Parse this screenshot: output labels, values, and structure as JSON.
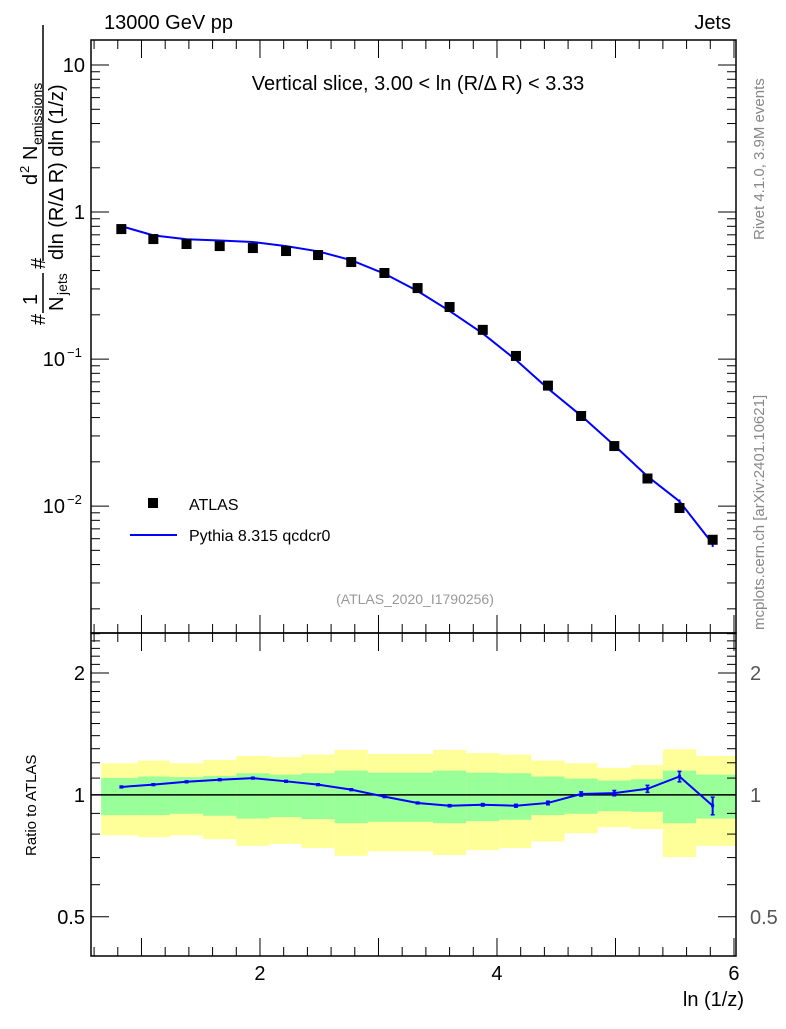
{
  "header": {
    "left": "13000 GeV pp",
    "right": "Jets"
  },
  "side_labels": {
    "rivet": "Rivet 4.1.0,  3.9M events",
    "mcplots": "mcplots.cern.ch [arXiv:2401.10621]"
  },
  "colors": {
    "atlas": "#000000",
    "pythia": "#0000ff",
    "band_inner": "#99ff99",
    "band_outer": "#ffff99"
  },
  "chart_data": [
    {
      "type": "scatter",
      "title": "Vertical slice, 3.00 < ln (R/Δ R) < 3.33",
      "ylabel_parts": {
        "hash1": "#",
        "one": "1",
        "njets": "N",
        "njets_sub": "jets",
        "hash2": "#",
        "num": "d",
        "num_sup": "2",
        "num_n": "N",
        "num_sub": "emissions",
        "den": "dln (R/Δ R) dln (1/z)"
      },
      "yscale": "log",
      "ylim": [
        0.00137,
        14.8
      ],
      "xlim": [
        0.574,
        6.017
      ],
      "yticks": [
        {
          "v": 10,
          "label": "10"
        },
        {
          "v": 1,
          "label": "1"
        },
        {
          "v": 0.1,
          "label": "10",
          "exp": "−1"
        },
        {
          "v": 0.01,
          "label": "10",
          "exp": "−2"
        }
      ],
      "watermark": "(ATLAS_2020_I1790256)",
      "legend": {
        "placement": "bottom-left",
        "entries": [
          "ATLAS",
          "Pythia 8.315 qcdcr0"
        ]
      },
      "x": [
        0.83,
        1.1,
        1.38,
        1.66,
        1.94,
        2.22,
        2.49,
        2.77,
        3.05,
        3.33,
        3.6,
        3.88,
        4.16,
        4.43,
        4.71,
        4.99,
        5.27,
        5.54,
        5.82
      ],
      "series": [
        {
          "name": "ATLAS",
          "values": [
            0.766,
            0.655,
            0.606,
            0.587,
            0.569,
            0.543,
            0.51,
            0.457,
            0.385,
            0.304,
            0.226,
            0.158,
            0.105,
            0.066,
            0.041,
            0.0256,
            0.0154,
            0.0097,
            0.0059
          ]
        },
        {
          "name": "Pythia 8.315 qcdcr0",
          "ratio_to_atlas": [
            1.046,
            1.06,
            1.077,
            1.09,
            1.1,
            1.08,
            1.06,
            1.03,
            0.99,
            0.955,
            0.94,
            0.945,
            0.94,
            0.955,
            1.005,
            1.01,
            1.035,
            1.11,
            0.94
          ],
          "ratio_err": [
            0.005,
            0.005,
            0.005,
            0.005,
            0.005,
            0.005,
            0.005,
            0.005,
            0.005,
            0.005,
            0.006,
            0.007,
            0.008,
            0.01,
            0.012,
            0.015,
            0.02,
            0.03,
            0.05
          ]
        }
      ]
    },
    {
      "type": "area",
      "ylabel": "Ratio to ATLAS",
      "xlabel": "ln (1/z)",
      "yscale": "log",
      "ylim": [
        0.4,
        2.51
      ],
      "yticks": [
        {
          "v": 2,
          "label": "2"
        },
        {
          "v": 1,
          "label": "1"
        },
        {
          "v": 0.5,
          "label": "0.5"
        }
      ],
      "xticks": [
        {
          "v": 2,
          "label": "2"
        },
        {
          "v": 4,
          "label": "4"
        },
        {
          "v": 6,
          "label": "6"
        }
      ],
      "bin_edges": [
        0.66,
        0.97,
        1.24,
        1.52,
        1.8,
        2.08,
        2.35,
        2.63,
        2.91,
        3.19,
        3.46,
        3.74,
        4.02,
        4.29,
        4.57,
        4.85,
        5.13,
        5.4,
        5.68,
        6.017
      ],
      "inner_band": {
        "up": [
          1.101,
          1.11,
          1.106,
          1.114,
          1.131,
          1.122,
          1.131,
          1.148,
          1.135,
          1.135,
          1.148,
          1.135,
          1.131,
          1.11,
          1.097,
          1.085,
          1.093,
          1.148,
          1.122
        ],
        "down": [
          0.891,
          0.891,
          0.898,
          0.888,
          0.874,
          0.881,
          0.871,
          0.851,
          0.858,
          0.858,
          0.851,
          0.861,
          0.868,
          0.891,
          0.898,
          0.911,
          0.908,
          0.851,
          0.874
        ]
      },
      "outer_band": {
        "up": [
          1.197,
          1.216,
          1.197,
          1.22,
          1.248,
          1.239,
          1.257,
          1.291,
          1.262,
          1.262,
          1.291,
          1.267,
          1.257,
          1.216,
          1.197,
          1.166,
          1.184,
          1.296,
          1.248
        ],
        "down": [
          0.794,
          0.786,
          0.794,
          0.777,
          0.748,
          0.757,
          0.739,
          0.707,
          0.725,
          0.725,
          0.71,
          0.73,
          0.739,
          0.767,
          0.804,
          0.832,
          0.823,
          0.702,
          0.748
        ]
      }
    }
  ]
}
